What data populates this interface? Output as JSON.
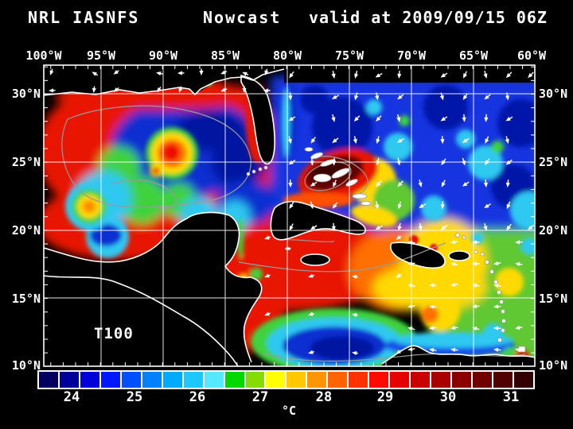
{
  "title": {
    "model": "NRL IASNFS",
    "product": "Nowcast",
    "valid": "valid at 2009/09/15 06Z"
  },
  "map": {
    "field_label": "T100",
    "top_axis": {
      "labels": [
        "100°W",
        "95°W",
        "90°W",
        "85°W",
        "80°W",
        "75°W",
        "70°W",
        "65°W",
        "60°W"
      ]
    },
    "left_axis": {
      "labels": [
        "30°N",
        "25°N",
        "20°N",
        "15°N",
        "10°N"
      ]
    },
    "right_axis": {
      "labels": [
        "30°N",
        "25°N",
        "20°N",
        "15°N",
        "10°N"
      ]
    }
  },
  "colorbar": {
    "tick_labels": [
      "24",
      "25",
      "26",
      "27",
      "28",
      "29",
      "30",
      "31"
    ],
    "unit": "°C",
    "cell_colors": [
      "#000060",
      "#00009B",
      "#0000D8",
      "#0018FF",
      "#0050FF",
      "#0082FF",
      "#00AAFF",
      "#1EC8FF",
      "#55E8FF",
      "#00D800",
      "#84DC00",
      "#FFFF00",
      "#FFC800",
      "#FF9600",
      "#FF6400",
      "#FF3200",
      "#FF0A00",
      "#E60000",
      "#C80000",
      "#AA0000",
      "#8C0000",
      "#6E0000",
      "#500000",
      "#320000"
    ]
  }
}
